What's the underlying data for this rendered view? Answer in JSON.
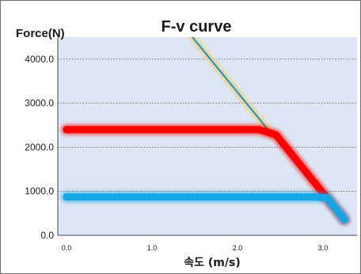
{
  "chart_data": {
    "type": "line",
    "title": "F-v curve",
    "ylabel": "Force(N)",
    "xlabel": "속도 (m/s)",
    "xlim": [
      0.0,
      3.3
    ],
    "ylim": [
      0.0,
      4500.0
    ],
    "x_ticks": [
      0.0,
      1.0,
      2.0,
      3.0
    ],
    "x_tick_labels": [
      "0.0",
      "1.0",
      "2.0",
      "3.0"
    ],
    "y_ticks": [
      0.0,
      1000.0,
      2000.0,
      3000.0,
      4000.0
    ],
    "y_tick_labels": [
      "0.0",
      "1000.0",
      "2000.0",
      "3000.0",
      "4000.0"
    ],
    "grid": "horizontal dashed",
    "series": [
      {
        "color": "#1b8fd6",
        "glow_color": "#ecd27a",
        "style": "thin",
        "x": [
          1.43,
          2.42
        ],
        "y": [
          4600.0,
          2250.0
        ]
      },
      {
        "color": "#ff0000",
        "style": "thick-glow",
        "x": [
          0.0,
          2.25,
          2.45,
          3.25
        ],
        "y": [
          2400.0,
          2400.0,
          2280.0,
          360.0
        ]
      },
      {
        "color": "#14a7e6",
        "style": "thick-glow",
        "x": [
          0.0,
          2.9,
          3.05,
          3.25
        ],
        "y": [
          870.0,
          870.0,
          850.0,
          360.0
        ]
      }
    ],
    "colors": {
      "plot_background": "#dce6f4",
      "grid_line": "#555555"
    }
  }
}
